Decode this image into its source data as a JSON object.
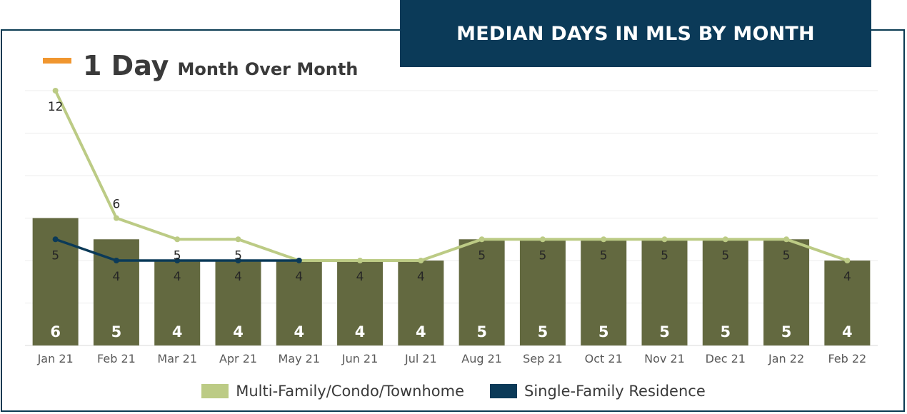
{
  "title": "MEDIAN DAYS IN MLS BY MONTH",
  "headline": {
    "value": "1 Day",
    "subtitle": "Month Over Month",
    "swatch_color": "#f0962f"
  },
  "chart_data": {
    "type": "bar",
    "categories": [
      "Jan 21",
      "Feb 21",
      "Mar 21",
      "Apr 21",
      "May 21",
      "Jun 21",
      "Jul 21",
      "Aug 21",
      "Sep 21",
      "Oct 21",
      "Nov 21",
      "Dec 21",
      "Jan 22",
      "Feb 22"
    ],
    "bars": {
      "values": [
        6,
        5,
        4,
        4,
        4,
        4,
        4,
        5,
        5,
        5,
        5,
        5,
        5,
        4
      ],
      "color": "#636940",
      "label_color": "#ffffff"
    },
    "series": [
      {
        "name": "Multi-Family/Condo/Townhome",
        "type": "line",
        "color": "#bccb85",
        "values": [
          12,
          6,
          5,
          5,
          4,
          4,
          4,
          5,
          5,
          5,
          5,
          5,
          5,
          4
        ]
      },
      {
        "name": "Single-Family Residence",
        "type": "line",
        "color": "#0b3a58",
        "values": [
          5,
          4,
          4,
          4,
          4,
          null,
          null,
          null,
          null,
          null,
          null,
          null,
          null,
          null
        ]
      }
    ],
    "point_labels": [
      [
        "12",
        "5"
      ],
      [
        "6",
        "4"
      ],
      [
        "5",
        "4"
      ],
      [
        "5",
        "4"
      ],
      [
        "4"
      ],
      [
        "4"
      ],
      [
        "4"
      ],
      [
        "5"
      ],
      [
        "5"
      ],
      [
        "5"
      ],
      [
        "5"
      ],
      [
        "5"
      ],
      [
        "5"
      ],
      [
        "4"
      ]
    ],
    "ylim": [
      0,
      12
    ],
    "grid": true,
    "legend_position": "bottom"
  }
}
